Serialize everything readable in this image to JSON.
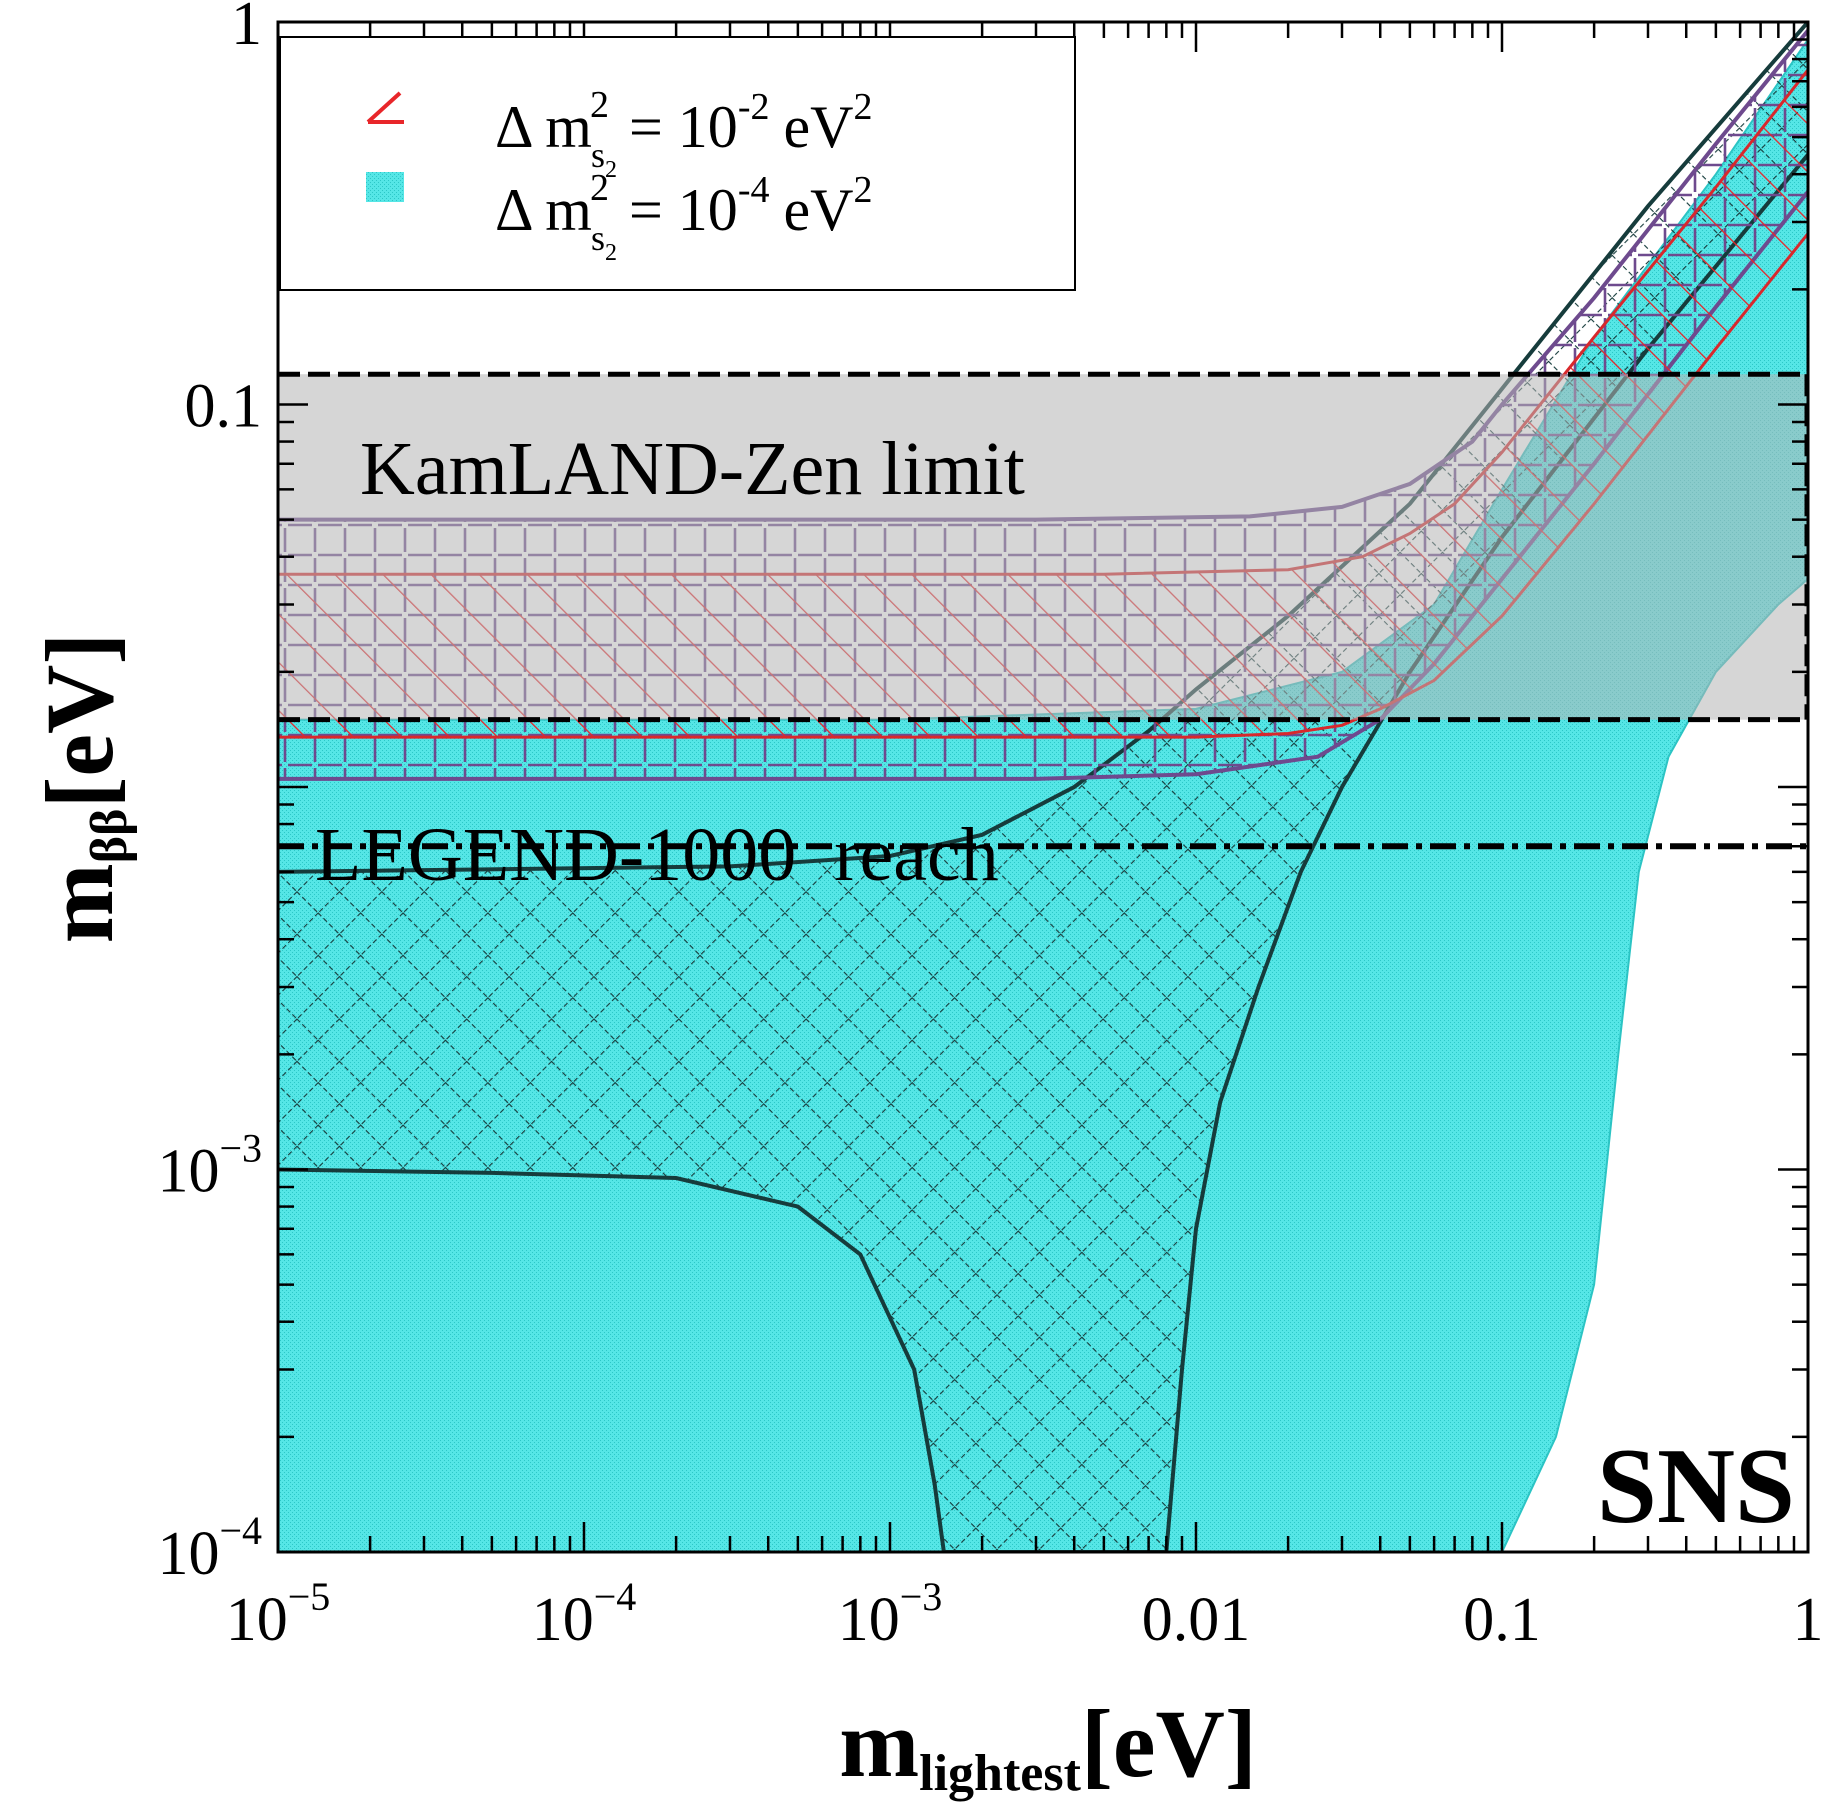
{
  "chart_data": {
    "type": "area",
    "xlabel": {
      "main": "m",
      "sub": "lightest",
      "unit": "[eV]"
    },
    "ylabel": {
      "main": "m",
      "sub": "ββ",
      "unit": "[eV]"
    },
    "xscale": "log",
    "yscale": "log",
    "xlim": [
      1e-05,
      1
    ],
    "ylim": [
      0.0001,
      1
    ],
    "x_ticks": [
      {
        "value": 1e-05,
        "base": "10",
        "exp": "−5"
      },
      {
        "value": 0.0001,
        "base": "10",
        "exp": "−4"
      },
      {
        "value": 0.001,
        "base": "10",
        "exp": "−3"
      },
      {
        "value": 0.01,
        "text": "0.01"
      },
      {
        "value": 0.1,
        "text": "0.1"
      },
      {
        "value": 1,
        "text": "1"
      }
    ],
    "y_ticks": [
      {
        "value": 0.0001,
        "base": "10",
        "exp": "−4"
      },
      {
        "value": 0.001,
        "base": "10",
        "exp": "−3"
      },
      {
        "value": 0.1,
        "text": "0.1"
      },
      {
        "value": 1,
        "text": "1"
      }
    ],
    "legend": {
      "placement": "top-left",
      "entries": [
        {
          "lhs": "Δ m",
          "sup": "2",
          "sub": "s",
          "subsub": "2",
          "rhs": "= 10",
          "exp": "-2",
          "unit": "eV",
          "unit_exp": "2",
          "style": "red-hatch",
          "color": "#e8262a"
        },
        {
          "lhs": "Δ m",
          "sup": "2",
          "sub": "s",
          "subsub": "2",
          "rhs": "= 10",
          "exp": "-4",
          "unit": "eV",
          "unit_exp": "2",
          "style": "cyan-fill",
          "color": "#55e4e4"
        }
      ]
    },
    "annotations": {
      "kamland": "KamLAND-Zen limit",
      "legend1000": "LEGEND-1000  reach",
      "ordering": "SNS"
    },
    "kamland_band": {
      "y_low": 0.015,
      "y_high": 0.12
    },
    "legend_reach": 0.007,
    "series": [
      {
        "style": "cyan-fill",
        "upper": [
          [
            1e-05,
            0.015
          ],
          [
            0.001,
            0.015
          ],
          [
            0.01,
            0.016
          ],
          [
            0.03,
            0.02
          ],
          [
            0.06,
            0.03
          ],
          [
            0.1,
            0.06
          ],
          [
            0.2,
            0.15
          ],
          [
            0.5,
            0.4
          ],
          [
            1,
            0.9
          ]
        ],
        "lower": [
          [
            1e-05,
            0.0001
          ],
          [
            0.1,
            0.0001
          ],
          [
            0.15,
            0.0002
          ],
          [
            0.2,
            0.0005
          ],
          [
            0.24,
            0.002
          ],
          [
            0.28,
            0.006
          ],
          [
            0.35,
            0.012
          ],
          [
            0.5,
            0.02
          ],
          [
            0.8,
            0.03
          ],
          [
            1,
            0.035
          ]
        ]
      },
      {
        "style": "black-crosshatch",
        "upper": [
          [
            1e-05,
            0.006
          ],
          [
            0.0003,
            0.0062
          ],
          [
            0.001,
            0.0066
          ],
          [
            0.002,
            0.0075
          ],
          [
            0.004,
            0.01
          ],
          [
            0.007,
            0.014
          ],
          [
            0.01,
            0.018
          ],
          [
            0.02,
            0.028
          ],
          [
            0.05,
            0.055
          ],
          [
            0.1,
            0.11
          ],
          [
            0.3,
            0.33
          ],
          [
            1,
            1.0
          ]
        ],
        "lower": [
          [
            1e-05,
            0.001
          ],
          [
            5e-05,
            0.00098
          ],
          [
            0.0002,
            0.00095
          ],
          [
            0.0005,
            0.0008
          ],
          [
            0.0008,
            0.0006
          ],
          [
            0.0012,
            0.0003
          ],
          [
            0.0014,
            0.00015
          ],
          [
            0.0015,
            0.0001
          ],
          [
            0.008,
            0.0001
          ],
          [
            0.009,
            0.0003
          ],
          [
            0.01,
            0.0007
          ],
          [
            0.012,
            0.0015
          ],
          [
            0.016,
            0.003
          ],
          [
            0.022,
            0.006
          ],
          [
            0.03,
            0.01
          ],
          [
            0.05,
            0.02
          ],
          [
            0.1,
            0.045
          ],
          [
            0.3,
            0.14
          ],
          [
            1,
            0.45
          ]
        ]
      },
      {
        "style": "purple-dash-grid",
        "upper": [
          [
            1e-05,
            0.05
          ],
          [
            0.003,
            0.05
          ],
          [
            0.015,
            0.051
          ],
          [
            0.03,
            0.054
          ],
          [
            0.05,
            0.062
          ],
          [
            0.08,
            0.08
          ],
          [
            0.1,
            0.1
          ],
          [
            0.2,
            0.19
          ],
          [
            0.5,
            0.48
          ],
          [
            1,
            0.95
          ]
        ],
        "lower": [
          [
            1e-05,
            0.0105
          ],
          [
            0.003,
            0.0105
          ],
          [
            0.01,
            0.0108
          ],
          [
            0.025,
            0.012
          ],
          [
            0.04,
            0.015
          ],
          [
            0.06,
            0.021
          ],
          [
            0.1,
            0.035
          ],
          [
            0.2,
            0.07
          ],
          [
            0.5,
            0.18
          ],
          [
            1,
            0.36
          ]
        ]
      },
      {
        "style": "red-hatch",
        "upper": [
          [
            1e-05,
            0.036
          ],
          [
            0.005,
            0.036
          ],
          [
            0.02,
            0.037
          ],
          [
            0.035,
            0.04
          ],
          [
            0.05,
            0.046
          ],
          [
            0.07,
            0.055
          ],
          [
            0.1,
            0.075
          ],
          [
            0.2,
            0.15
          ],
          [
            0.5,
            0.37
          ],
          [
            1,
            0.75
          ]
        ],
        "lower": [
          [
            1e-05,
            0.0135
          ],
          [
            0.01,
            0.0135
          ],
          [
            0.02,
            0.0138
          ],
          [
            0.03,
            0.0145
          ],
          [
            0.04,
            0.016
          ],
          [
            0.06,
            0.019
          ],
          [
            0.1,
            0.028
          ],
          [
            0.2,
            0.055
          ],
          [
            0.5,
            0.14
          ],
          [
            1,
            0.28
          ]
        ]
      }
    ]
  }
}
